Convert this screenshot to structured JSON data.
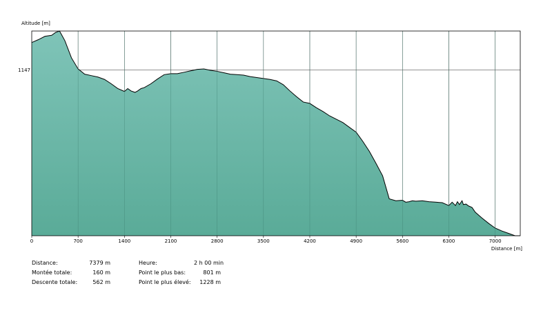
{
  "chart_data": {
    "type": "area",
    "title": "",
    "ylabel": "Altitude [m]",
    "xlabel": "Distance [m]",
    "xlim": [
      0,
      7379
    ],
    "ylim": [
      801,
      1228
    ],
    "x_ticks": [
      0,
      700,
      1400,
      2100,
      2800,
      3500,
      4200,
      4900,
      5600,
      6300,
      7000
    ],
    "y_ticks": [
      1147
    ],
    "grid": true,
    "fill_color": "#5aab98",
    "fill_color_top": "#7fc4b8",
    "line_color": "#000000",
    "series": [
      {
        "x": [
          0,
          100,
          200,
          300,
          360,
          420,
          500,
          600,
          700,
          800,
          900,
          1000,
          1100,
          1200,
          1300,
          1400,
          1450,
          1500,
          1560,
          1600,
          1650,
          1700,
          1800,
          1900,
          2000,
          2100,
          2200,
          2300,
          2400,
          2500,
          2600,
          2700,
          2800,
          2900,
          3000,
          3100,
          3200,
          3300,
          3400,
          3500,
          3600,
          3700,
          3800,
          3900,
          4000,
          4100,
          4200,
          4300,
          4400,
          4500,
          4600,
          4700,
          4800,
          4900,
          5000,
          5100,
          5200,
          5300,
          5400,
          5500,
          5600,
          5650,
          5700,
          5750,
          5800,
          5900,
          6000,
          6100,
          6200,
          6300,
          6350,
          6400,
          6430,
          6460,
          6500,
          6520,
          6560,
          6600,
          6650,
          6700,
          6800,
          6900,
          7000,
          7100,
          7200,
          7300,
          7379
        ],
        "y": [
          1204,
          1210,
          1217,
          1219,
          1225,
          1228,
          1208,
          1172,
          1149,
          1138,
          1135,
          1132,
          1127,
          1118,
          1108,
          1102,
          1108,
          1103,
          1100,
          1103,
          1108,
          1110,
          1118,
          1128,
          1137,
          1139,
          1139,
          1142,
          1145,
          1148,
          1149,
          1146,
          1144,
          1141,
          1138,
          1137,
          1136,
          1133,
          1131,
          1129,
          1127,
          1124,
          1116,
          1103,
          1091,
          1080,
          1077,
          1068,
          1060,
          1051,
          1044,
          1037,
          1027,
          1017,
          998,
          977,
          952,
          926,
          878,
          874,
          875,
          871,
          872,
          874,
          873,
          874,
          872,
          871,
          870,
          864,
          871,
          864,
          872,
          866,
          874,
          866,
          867,
          863,
          860,
          850,
          838,
          827,
          817,
          811,
          806,
          801,
          801
        ]
      }
    ]
  },
  "stats_left": [
    {
      "label": "Distance:",
      "value": "7379 m"
    },
    {
      "label": "Montée totale:",
      "value": "160 m"
    },
    {
      "label": "Descente totale:",
      "value": "562 m"
    }
  ],
  "stats_right": [
    {
      "label": "Heure:",
      "value": "2 h 00 min"
    },
    {
      "label": "Point le plus bas:",
      "value": "801 m"
    },
    {
      "label": "Point le plus élevé:",
      "value": "1228 m"
    }
  ]
}
